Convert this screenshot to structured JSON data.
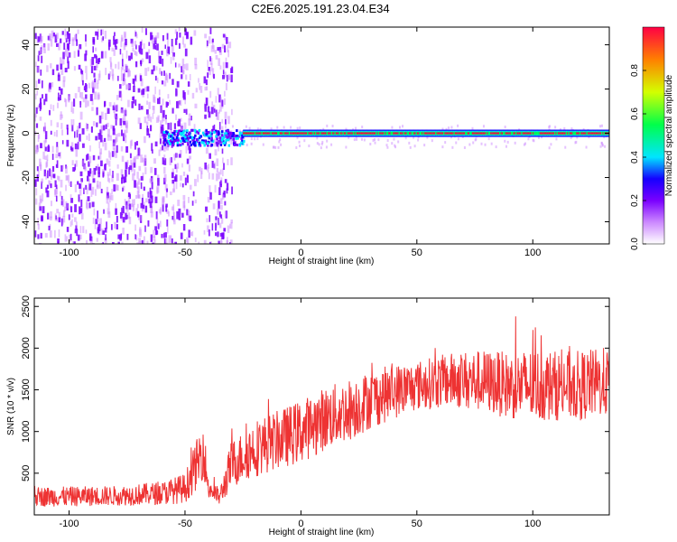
{
  "figure": {
    "title": "C2E6.2025.191.23.04.E34"
  },
  "chart_data": [
    {
      "type": "heatmap",
      "title": "C2E6.2025.191.23.04.E34",
      "xlabel": "Height of straight line (km)",
      "ylabel": "Frequency (Hz)",
      "xlim": [
        -115,
        133
      ],
      "ylim": [
        -50,
        48
      ],
      "xticks": [
        -100,
        -50,
        0,
        50,
        100
      ],
      "xtick_labels": [
        "-100",
        "-50",
        "0",
        "50",
        "100"
      ],
      "yticks": [
        -40,
        -20,
        0,
        20,
        40
      ],
      "ytick_labels": [
        "-40",
        "-20",
        "0",
        "20",
        "40"
      ],
      "colorbar": {
        "label": "Normalized spectral amplitude",
        "range": [
          0,
          1
        ],
        "ticks": [
          "0.0",
          "0.2",
          "0.4",
          "0.6",
          "0.8"
        ],
        "colors": [
          "#ffffff",
          "#cc88ff",
          "#7a00ff",
          "#1500ff",
          "#00e5ff",
          "#00ff4a",
          "#d4ff00",
          "#ff8000",
          "#ff0044"
        ]
      },
      "description_regions": [
        {
          "x_range": [
            -115,
            -30
          ],
          "freq_range": [
            -50,
            48
          ],
          "amplitude": 0.15
        },
        {
          "x_range": [
            -60,
            -25
          ],
          "freq_range": [
            -5,
            2
          ],
          "amplitude": 0.4
        },
        {
          "x_range": [
            -25,
            133
          ],
          "freq_range": [
            -1,
            1
          ],
          "amplitude": 0.9
        }
      ],
      "grid": false
    },
    {
      "type": "line",
      "xlabel": "Height of straight line (km)",
      "ylabel": "SNR (10 * v/v)",
      "xlim": [
        -115,
        133
      ],
      "ylim": [
        0,
        2600
      ],
      "xticks": [
        -100,
        -50,
        0,
        50,
        100
      ],
      "xtick_labels": [
        "-100",
        "-50",
        "0",
        "50",
        "100"
      ],
      "yticks": [
        500,
        1000,
        1500,
        2000,
        2500
      ],
      "ytick_labels": [
        "500",
        "1000",
        "1500",
        "2000",
        "2500"
      ],
      "series": [
        {
          "color": "#ee3333",
          "x": [
            -115,
            -100,
            -80,
            -60,
            -50,
            -45,
            -42,
            -40,
            -35,
            -30,
            -25,
            -20,
            -10,
            0,
            10,
            20,
            30,
            40,
            50,
            60,
            70,
            80,
            90,
            100,
            110,
            120,
            133
          ],
          "y": [
            220,
            220,
            230,
            260,
            320,
            600,
            800,
            330,
            210,
            600,
            700,
            800,
            900,
            1000,
            1150,
            1250,
            1380,
            1480,
            1550,
            1600,
            1620,
            1600,
            1550,
            1550,
            1550,
            1550,
            1600
          ],
          "noise_amplitude": [
            120,
            120,
            120,
            140,
            180,
            300,
            350,
            150,
            100,
            300,
            300,
            350,
            350,
            380,
            380,
            380,
            350,
            330,
            300,
            320,
            350,
            380,
            400,
            450,
            420,
            420,
            420
          ]
        }
      ],
      "grid": false
    }
  ]
}
